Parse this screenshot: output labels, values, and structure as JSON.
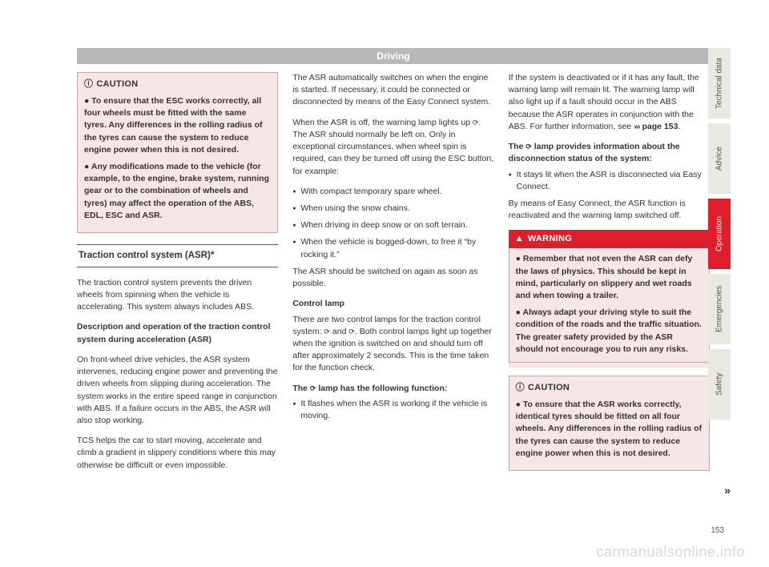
{
  "header": "Driving",
  "col1": {
    "caution_title": "CAUTION",
    "caution_p1": "● To ensure that the ESC works correctly, all four wheels must be fitted with the same tyres. Any differences in the rolling radius of the tyres can cause the system to reduce engine power when this is not desired.",
    "caution_p2": "● Any modifications made to the vehicle (for example, to the engine, brake system, running gear or to the combination of wheels and tyres) may affect the operation of the ABS, EDL, ESC and ASR.",
    "section_title": "Traction control system (ASR)*",
    "p1": "The traction control system prevents the driven wheels from spinning when the vehicle is accelerating. This system always includes ABS.",
    "sub1": "Description and operation of the traction control system during acceleration (ASR)",
    "p2": "On front-wheel drive vehicles, the ASR system intervenes, reducing engine power and preventing the driven wheels from slipping during acceleration. The system works in the entire speed range in conjunction with ABS. If a failure occurs in the ABS, the ASR will also stop working.",
    "p3": "TCS helps the car to start moving, accelerate and climb a gradient in slippery conditions where this may otherwise be difficult or even impossible."
  },
  "col2": {
    "p1": "The ASR automatically switches on when the engine is started. If necessary, it could be connected or disconnected by means of the Easy Connect system.",
    "p2a": "When the ASR is off, the warning lamp lights up ",
    "p2b": ". The ASR should normally be left on. Only in exceptional circumstances, when wheel spin is required, can they be turned off using the ESC button, for example:",
    "b1": "With compact temporary spare wheel.",
    "b2": "When using the snow chains.",
    "b3": "When driving in deep snow or on soft terrain.",
    "b4": "When the vehicle is bogged-down, to free it “by rocking it.”",
    "p3": "The ASR should be switched on again as soon as possible.",
    "sub1": "Control lamp",
    "p4a": "There are two control lamps for the traction control system: ",
    "p4b": " and ",
    "p4c": ". Both control lamps light up together when the ignition is switched on and should turn off after approximately 2 seconds. This is the time taken for the function check.",
    "sub2a": "The ",
    "sub2b": " lamp has the following function:",
    "b5": "It flashes when the ASR is working if the vehicle is moving."
  },
  "col3": {
    "p1a": "If the system is deactivated or if it has any fault, the warning lamp will remain lit. The warning lamp will also light up if a fault should occur in the ABS because the ASR operates in conjunction with the ABS. For further information, see ",
    "p1b": " page 153",
    "p1c": ".",
    "sub1a": "The ",
    "sub1b": " lamp provides information about the disconnection status of the system:",
    "b1": "It stays lit when the ASR is disconnected via Easy Connect.",
    "p2": "By means of Easy Connect, the ASR function is reactivated and the warning lamp switched off.",
    "warn_title": "WARNING",
    "warn_p1": "● Remember that not even the ASR can defy the laws of physics. This should be kept in mind, particularly on slippery and wet roads and when towing a trailer.",
    "warn_p2": "● Always adapt your driving style to suit the condition of the roads and the traffic situation. The greater safety provided by the ASR should not encourage you to run any risks.",
    "caution_title": "CAUTION",
    "caution_p1": "● To ensure that the ASR works correctly, identical tyres should be fitted on all four wheels. Any differences in the rolling radius of the tyres can cause the system to reduce engine power when this is not desired."
  },
  "tabs": {
    "t1": "Technical data",
    "t2": "Advice",
    "t3": "Operation",
    "t4": "Emergencies",
    "t5": "Safety"
  },
  "page_num": "153",
  "watermark": "carmanualsonline.info"
}
